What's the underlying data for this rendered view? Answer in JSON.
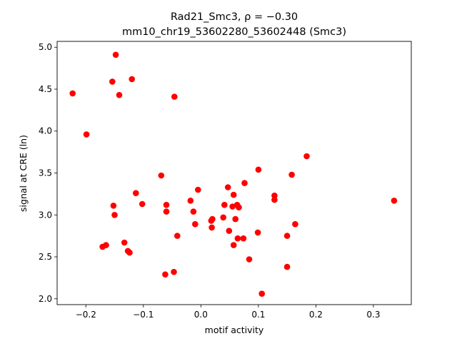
{
  "chart_data": {
    "type": "scatter",
    "title_lines": [
      "Rad21_Smc3, ρ = −0.30",
      "mm10_chr19_53602280_53602448 (Smc3)"
    ],
    "xlabel": "motif activity",
    "ylabel": "signal at CRE (ln)",
    "xlim": [
      -0.25,
      0.3659
    ],
    "ylim": [
      1.93,
      5.07
    ],
    "xticks": [
      -0.2,
      -0.1,
      0.0,
      0.1,
      0.2,
      0.3
    ],
    "xtick_labels": [
      "−0.2",
      "−0.1",
      "0.0",
      "0.1",
      "0.2",
      "0.3"
    ],
    "yticks": [
      2.0,
      2.5,
      3.0,
      3.5,
      4.0,
      4.5,
      5.0
    ],
    "ytick_labels": [
      "2.0",
      "2.5",
      "3.0",
      "3.5",
      "4.0",
      "4.5",
      "5.0"
    ],
    "grid": false,
    "marker_color": "#ff0000",
    "points": [
      [
        -0.223,
        4.45
      ],
      [
        -0.148,
        4.91
      ],
      [
        -0.154,
        4.59
      ],
      [
        -0.12,
        4.62
      ],
      [
        -0.142,
        4.43
      ],
      [
        -0.046,
        4.41
      ],
      [
        -0.199,
        3.96
      ],
      [
        -0.069,
        3.47
      ],
      [
        -0.113,
        3.26
      ],
      [
        -0.018,
        3.17
      ],
      [
        -0.005,
        3.3
      ],
      [
        -0.06,
        3.12
      ],
      [
        -0.152,
        3.11
      ],
      [
        -0.102,
        3.13
      ],
      [
        -0.06,
        3.04
      ],
      [
        -0.013,
        3.04
      ],
      [
        -0.15,
        3.0
      ],
      [
        0.02,
        2.95
      ],
      [
        0.018,
        2.93
      ],
      [
        -0.01,
        2.89
      ],
      [
        0.019,
        2.85
      ],
      [
        -0.041,
        2.75
      ],
      [
        -0.133,
        2.67
      ],
      [
        -0.165,
        2.64
      ],
      [
        -0.171,
        2.62
      ],
      [
        -0.127,
        2.57
      ],
      [
        -0.124,
        2.55
      ],
      [
        -0.062,
        2.29
      ],
      [
        -0.047,
        2.32
      ],
      [
        0.047,
        3.33
      ],
      [
        0.041,
        3.12
      ],
      [
        0.055,
        3.1
      ],
      [
        0.063,
        3.12
      ],
      [
        0.066,
        3.09
      ],
      [
        0.057,
        3.24
      ],
      [
        0.076,
        3.38
      ],
      [
        0.1,
        3.54
      ],
      [
        0.039,
        2.97
      ],
      [
        0.06,
        2.95
      ],
      [
        0.049,
        2.81
      ],
      [
        0.064,
        2.72
      ],
      [
        0.074,
        2.72
      ],
      [
        0.057,
        2.64
      ],
      [
        0.099,
        2.79
      ],
      [
        0.084,
        2.47
      ],
      [
        0.128,
        3.23
      ],
      [
        0.128,
        3.18
      ],
      [
        0.158,
        3.48
      ],
      [
        0.184,
        3.7
      ],
      [
        0.164,
        2.89
      ],
      [
        0.15,
        2.75
      ],
      [
        0.15,
        2.38
      ],
      [
        0.106,
        2.06
      ],
      [
        0.336,
        3.17
      ]
    ]
  }
}
